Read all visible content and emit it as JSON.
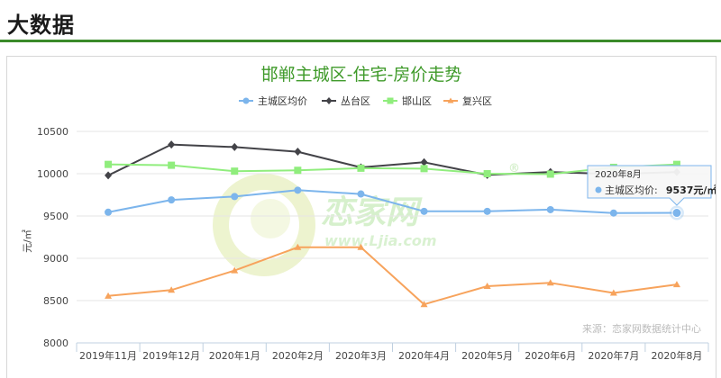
{
  "page": {
    "section_title": "大数据"
  },
  "watermark": {
    "brand": "恋家网",
    "url": "www.Ljia.com",
    "registered": "®"
  },
  "chart_data": {
    "type": "line",
    "title": "邯郸主城区-住宅-房价走势",
    "ylabel": "元/㎡",
    "xlabel": "",
    "ylim": [
      8000,
      10500
    ],
    "yticks": [
      8000,
      8500,
      9000,
      9500,
      10000,
      10500
    ],
    "categories": [
      "2019年11月",
      "2019年12月",
      "2020年1月",
      "2020年2月",
      "2020年3月",
      "2020年4月",
      "2020年5月",
      "2020年6月",
      "2020年7月",
      "2020年8月"
    ],
    "series": [
      {
        "name": "主城区均价",
        "color": "#7cb5ec",
        "marker": "circle",
        "values": [
          9545,
          9690,
          9730,
          9805,
          9760,
          9555,
          9555,
          9575,
          9535,
          9537
        ]
      },
      {
        "name": "丛台区",
        "color": "#434348",
        "marker": "diamond",
        "values": [
          9980,
          10345,
          10315,
          10260,
          10075,
          10135,
          9985,
          10020,
          9995,
          10020
        ]
      },
      {
        "name": "邯山区",
        "color": "#90ed7d",
        "marker": "square",
        "values": [
          10110,
          10100,
          10030,
          10040,
          10065,
          10060,
          10000,
          9995,
          10075,
          10110
        ]
      },
      {
        "name": "复兴区",
        "color": "#f7a35c",
        "marker": "triangle",
        "values": [
          8555,
          8625,
          8855,
          9130,
          9130,
          8455,
          8670,
          8710,
          8590,
          8690
        ]
      }
    ],
    "legend_position": "top-center",
    "grid": "horizontal",
    "source": "来源：恋家网数据统计中心",
    "tooltip": {
      "date": "2020年8月",
      "series_label": "主城区均价:",
      "value": "9537元/㎡",
      "category_index": 9
    }
  }
}
